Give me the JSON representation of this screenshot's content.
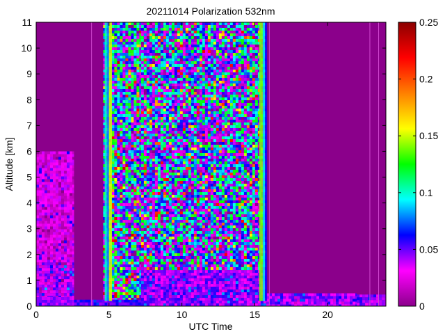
{
  "chart_data": {
    "type": "heatmap",
    "title": "20211014 Polarization 532nm",
    "xlabel": "UTC Time",
    "ylabel": "Altitude [km]",
    "xlim": [
      0,
      24
    ],
    "ylim": [
      0,
      11
    ],
    "x_ticks": [
      0,
      5,
      10,
      15,
      20
    ],
    "y_ticks": [
      0,
      1,
      2,
      3,
      4,
      5,
      6,
      7,
      8,
      9,
      10,
      11
    ],
    "colorbar": {
      "range": [
        0,
        0.25
      ],
      "ticks": [
        0,
        0.05,
        0.1,
        0.15,
        0.2,
        0.25
      ],
      "tick_labels": [
        "0",
        "0.05",
        "0.1",
        "0.15",
        "0.2",
        "0.25"
      ],
      "colormap": [
        "#8B008B",
        "#FF00FF",
        "#0000FF",
        "#00FFFF",
        "#00FF00",
        "#FFFF00",
        "#FF8000",
        "#FF0000",
        "#8B0000"
      ]
    },
    "background_value": 0.01,
    "regions": [
      {
        "x": [
          0.0,
          2.6
        ],
        "y": [
          0.0,
          0.35
        ],
        "value": 0.04,
        "noise": 0.02
      },
      {
        "x": [
          0.0,
          2.6
        ],
        "y": [
          0.35,
          1.8
        ],
        "value": 0.03,
        "noise": 0.04
      },
      {
        "x": [
          0.0,
          2.6
        ],
        "y": [
          1.8,
          6.0
        ],
        "value": 0.02,
        "noise": 0.03
      },
      {
        "x": [
          2.6,
          7.2
        ],
        "y": [
          0.0,
          0.25
        ],
        "value": 0.05,
        "noise": 0.02
      },
      {
        "x": [
          4.6,
          7.2
        ],
        "y": [
          0.25,
          11.0
        ],
        "value": 0.06,
        "noise": 0.12
      },
      {
        "x": [
          7.2,
          15.8
        ],
        "y": [
          0.0,
          1.4
        ],
        "value": 0.04,
        "noise": 0.03
      },
      {
        "x": [
          7.2,
          15.8
        ],
        "y": [
          1.4,
          11.0
        ],
        "value": 0.05,
        "noise": 0.12
      },
      {
        "x": [
          15.8,
          22.0
        ],
        "y": [
          0.0,
          0.5
        ],
        "value": 0.04,
        "noise": 0.03
      },
      {
        "x": [
          22.0,
          24.0
        ],
        "y": [
          0.0,
          0.45
        ],
        "value": 0.04,
        "noise": 0.02
      }
    ],
    "vertical_bands": [
      {
        "x": [
          4.7,
          4.85
        ],
        "value": 0.1
      },
      {
        "x": [
          4.85,
          5.0
        ],
        "value": 0.08
      },
      {
        "x": [
          5.0,
          5.2
        ],
        "value": 0.15
      },
      {
        "x": [
          15.3,
          15.55
        ],
        "value": 0.14
      },
      {
        "x": [
          15.55,
          15.7
        ],
        "value": 0.09
      },
      {
        "x": [
          15.7,
          15.85
        ],
        "value": 0.06
      }
    ],
    "thin_lines": [
      3.8,
      16.0,
      22.9,
      23.5
    ]
  }
}
